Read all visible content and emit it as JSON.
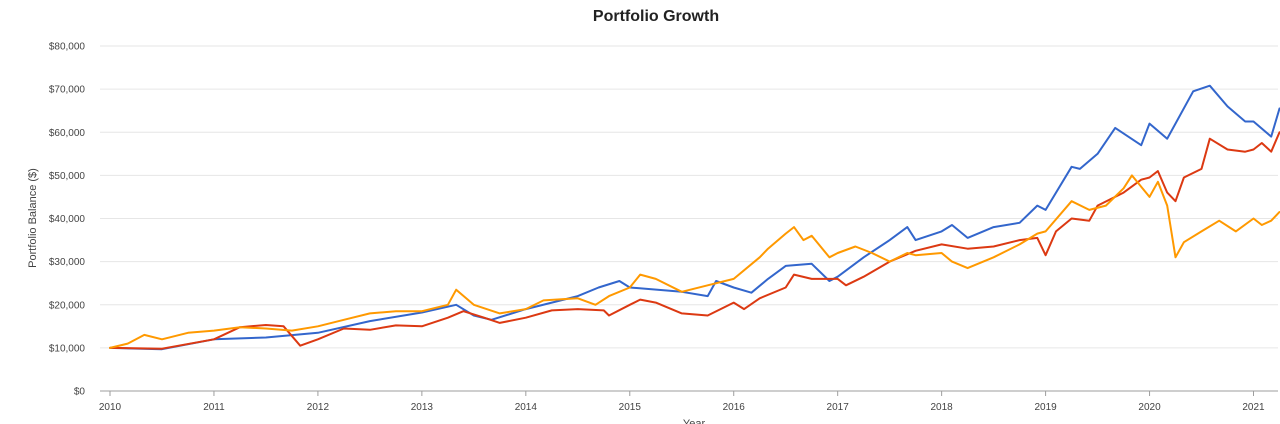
{
  "chart_data": {
    "type": "line",
    "title": "Portfolio Growth",
    "xlabel": "Year",
    "ylabel": "Portfolio Balance ($)",
    "xlim": [
      2010.0,
      2021.25
    ],
    "ylim": [
      0,
      80000
    ],
    "x_ticks": [
      2010,
      2011,
      2012,
      2013,
      2014,
      2015,
      2016,
      2017,
      2018,
      2019,
      2020,
      2021
    ],
    "x_tick_labels": [
      "2010",
      "2011",
      "2012",
      "2013",
      "2014",
      "2015",
      "2016",
      "2017",
      "2018",
      "2019",
      "2020",
      "2021"
    ],
    "y_ticks": [
      0,
      10000,
      20000,
      30000,
      40000,
      50000,
      60000,
      70000,
      80000
    ],
    "y_tick_labels": [
      "$0",
      "$10,000",
      "$20,000",
      "$30,000",
      "$40,000",
      "$50,000",
      "$60,000",
      "$70,000",
      "$80,000"
    ],
    "grid": true,
    "colors": [
      "#3366cc",
      "#dc3912",
      "#ff9900"
    ],
    "series": [
      {
        "color": "#3366cc",
        "points": [
          [
            2010.0,
            10000
          ],
          [
            2010.5,
            9700
          ],
          [
            2011.0,
            12000
          ],
          [
            2011.5,
            12400
          ],
          [
            2012.0,
            13500
          ],
          [
            2012.5,
            16200
          ],
          [
            2013.0,
            18200
          ],
          [
            2013.33,
            20000
          ],
          [
            2013.5,
            17500
          ],
          [
            2013.67,
            16500
          ],
          [
            2014.0,
            19000
          ],
          [
            2014.5,
            22000
          ],
          [
            2014.7,
            24000
          ],
          [
            2014.9,
            25500
          ],
          [
            2015.0,
            24000
          ],
          [
            2015.5,
            23000
          ],
          [
            2015.75,
            22000
          ],
          [
            2015.83,
            25500
          ],
          [
            2016.0,
            24000
          ],
          [
            2016.17,
            22800
          ],
          [
            2016.33,
            26000
          ],
          [
            2016.5,
            29000
          ],
          [
            2016.75,
            29500
          ],
          [
            2016.92,
            25500
          ],
          [
            2017.0,
            26500
          ],
          [
            2017.25,
            31000
          ],
          [
            2017.5,
            35000
          ],
          [
            2017.67,
            38000
          ],
          [
            2017.75,
            35000
          ],
          [
            2018.0,
            37000
          ],
          [
            2018.1,
            38500
          ],
          [
            2018.25,
            35500
          ],
          [
            2018.5,
            38000
          ],
          [
            2018.75,
            39000
          ],
          [
            2018.92,
            43000
          ],
          [
            2019.0,
            42000
          ],
          [
            2019.25,
            52000
          ],
          [
            2019.33,
            51500
          ],
          [
            2019.5,
            55000
          ],
          [
            2019.67,
            61000
          ],
          [
            2019.92,
            57000
          ],
          [
            2020.0,
            62000
          ],
          [
            2020.17,
            58500
          ],
          [
            2020.42,
            69500
          ],
          [
            2020.58,
            70800
          ],
          [
            2020.75,
            66000
          ],
          [
            2020.92,
            62500
          ],
          [
            2021.0,
            62500
          ],
          [
            2021.17,
            59000
          ],
          [
            2021.25,
            65500
          ]
        ]
      },
      {
        "color": "#dc3912",
        "points": [
          [
            2010.0,
            10000
          ],
          [
            2010.5,
            9800
          ],
          [
            2011.0,
            12000
          ],
          [
            2011.25,
            14800
          ],
          [
            2011.5,
            15300
          ],
          [
            2011.67,
            15000
          ],
          [
            2011.83,
            10500
          ],
          [
            2012.0,
            12000
          ],
          [
            2012.25,
            14500
          ],
          [
            2012.5,
            14200
          ],
          [
            2012.75,
            15200
          ],
          [
            2013.0,
            15000
          ],
          [
            2013.25,
            17000
          ],
          [
            2013.4,
            18500
          ],
          [
            2013.6,
            17000
          ],
          [
            2013.75,
            15800
          ],
          [
            2014.0,
            17000
          ],
          [
            2014.25,
            18700
          ],
          [
            2014.5,
            19000
          ],
          [
            2014.75,
            18700
          ],
          [
            2014.8,
            17500
          ],
          [
            2015.0,
            20000
          ],
          [
            2015.1,
            21200
          ],
          [
            2015.25,
            20500
          ],
          [
            2015.5,
            18000
          ],
          [
            2015.75,
            17500
          ],
          [
            2016.0,
            20500
          ],
          [
            2016.1,
            19000
          ],
          [
            2016.25,
            21500
          ],
          [
            2016.5,
            24000
          ],
          [
            2016.58,
            27000
          ],
          [
            2016.75,
            26000
          ],
          [
            2017.0,
            26000
          ],
          [
            2017.08,
            24500
          ],
          [
            2017.25,
            26500
          ],
          [
            2017.5,
            30000
          ],
          [
            2017.75,
            32500
          ],
          [
            2018.0,
            34000
          ],
          [
            2018.25,
            33000
          ],
          [
            2018.5,
            33500
          ],
          [
            2018.75,
            35000
          ],
          [
            2018.92,
            35500
          ],
          [
            2019.0,
            31500
          ],
          [
            2019.1,
            37000
          ],
          [
            2019.25,
            40000
          ],
          [
            2019.42,
            39500
          ],
          [
            2019.5,
            43000
          ],
          [
            2019.75,
            46000
          ],
          [
            2019.92,
            49000
          ],
          [
            2020.0,
            49500
          ],
          [
            2020.08,
            51000
          ],
          [
            2020.17,
            46000
          ],
          [
            2020.25,
            44000
          ],
          [
            2020.33,
            49500
          ],
          [
            2020.5,
            51500
          ],
          [
            2020.58,
            58500
          ],
          [
            2020.75,
            56000
          ],
          [
            2020.92,
            55500
          ],
          [
            2021.0,
            56000
          ],
          [
            2021.08,
            57500
          ],
          [
            2021.17,
            55500
          ],
          [
            2021.25,
            60000
          ]
        ]
      },
      {
        "color": "#ff9900",
        "points": [
          [
            2010.0,
            10000
          ],
          [
            2010.17,
            11000
          ],
          [
            2010.33,
            13000
          ],
          [
            2010.5,
            12000
          ],
          [
            2010.75,
            13500
          ],
          [
            2011.0,
            14000
          ],
          [
            2011.25,
            14800
          ],
          [
            2011.5,
            14500
          ],
          [
            2011.75,
            14000
          ],
          [
            2012.0,
            15000
          ],
          [
            2012.25,
            16500
          ],
          [
            2012.5,
            18000
          ],
          [
            2012.75,
            18500
          ],
          [
            2013.0,
            18500
          ],
          [
            2013.25,
            20000
          ],
          [
            2013.33,
            23500
          ],
          [
            2013.5,
            20000
          ],
          [
            2013.75,
            18000
          ],
          [
            2014.0,
            19000
          ],
          [
            2014.17,
            21000
          ],
          [
            2014.5,
            21500
          ],
          [
            2014.67,
            20000
          ],
          [
            2014.8,
            22000
          ],
          [
            2015.0,
            24000
          ],
          [
            2015.1,
            27000
          ],
          [
            2015.25,
            26000
          ],
          [
            2015.5,
            23000
          ],
          [
            2015.75,
            24500
          ],
          [
            2016.0,
            26000
          ],
          [
            2016.25,
            31000
          ],
          [
            2016.33,
            33000
          ],
          [
            2016.5,
            36500
          ],
          [
            2016.58,
            38000
          ],
          [
            2016.67,
            35000
          ],
          [
            2016.75,
            36000
          ],
          [
            2016.92,
            31000
          ],
          [
            2017.0,
            32000
          ],
          [
            2017.17,
            33500
          ],
          [
            2017.33,
            32000
          ],
          [
            2017.5,
            30000
          ],
          [
            2017.67,
            32000
          ],
          [
            2017.75,
            31500
          ],
          [
            2018.0,
            32000
          ],
          [
            2018.1,
            30000
          ],
          [
            2018.25,
            28500
          ],
          [
            2018.5,
            31000
          ],
          [
            2018.75,
            34000
          ],
          [
            2018.92,
            36500
          ],
          [
            2019.0,
            37000
          ],
          [
            2019.25,
            44000
          ],
          [
            2019.42,
            42000
          ],
          [
            2019.58,
            43000
          ],
          [
            2019.75,
            47000
          ],
          [
            2019.83,
            50000
          ],
          [
            2020.0,
            45000
          ],
          [
            2020.08,
            48500
          ],
          [
            2020.17,
            43000
          ],
          [
            2020.25,
            31000
          ],
          [
            2020.33,
            34500
          ],
          [
            2020.5,
            37000
          ],
          [
            2020.67,
            39500
          ],
          [
            2020.83,
            37000
          ],
          [
            2021.0,
            40000
          ],
          [
            2021.08,
            38500
          ],
          [
            2021.17,
            39500
          ],
          [
            2021.25,
            41500
          ]
        ]
      }
    ]
  }
}
